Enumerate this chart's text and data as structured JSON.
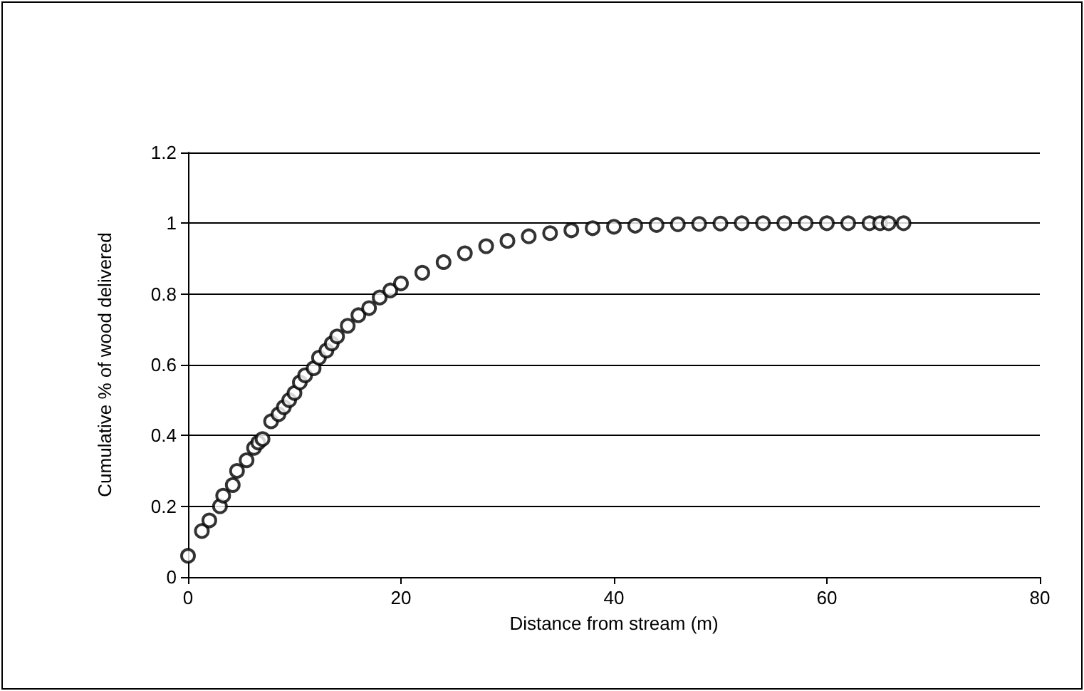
{
  "chart_data": {
    "type": "scatter",
    "xlabel": "Distance from stream (m)",
    "ylabel": "Cumulative % of wood delivered",
    "x": [
      0,
      1.3,
      2,
      3,
      3.3,
      4.2,
      4.6,
      5.5,
      6.2,
      6.6,
      7,
      7.8,
      8.5,
      9,
      9.5,
      10,
      10.5,
      11,
      11.8,
      12.3,
      13,
      13.5,
      14,
      15,
      16,
      17,
      18,
      19,
      20,
      22,
      24,
      26,
      28,
      30,
      32,
      34,
      36,
      38,
      40,
      42,
      44,
      46,
      48,
      50,
      52,
      54,
      56,
      58,
      60,
      62,
      64,
      65,
      65.8,
      67.2
    ],
    "values": [
      0.06,
      0.13,
      0.16,
      0.2,
      0.23,
      0.26,
      0.3,
      0.33,
      0.365,
      0.38,
      0.39,
      0.44,
      0.46,
      0.48,
      0.5,
      0.52,
      0.55,
      0.57,
      0.59,
      0.62,
      0.64,
      0.66,
      0.68,
      0.71,
      0.74,
      0.76,
      0.79,
      0.81,
      0.83,
      0.86,
      0.89,
      0.915,
      0.935,
      0.95,
      0.963,
      0.972,
      0.98,
      0.986,
      0.99,
      0.993,
      0.995,
      0.997,
      0.998,
      0.999,
      1,
      1,
      1,
      1,
      1,
      1,
      1,
      1,
      1,
      1
    ],
    "color": "#000000",
    "marker": "circle",
    "xlim": [
      0,
      80
    ],
    "xticks": [
      0,
      20,
      40,
      60,
      80
    ],
    "ylim": [
      0,
      1.2
    ],
    "yticks": [
      0,
      0.2,
      0.4,
      0.6,
      0.8,
      1,
      1.2
    ],
    "grid": "y"
  }
}
